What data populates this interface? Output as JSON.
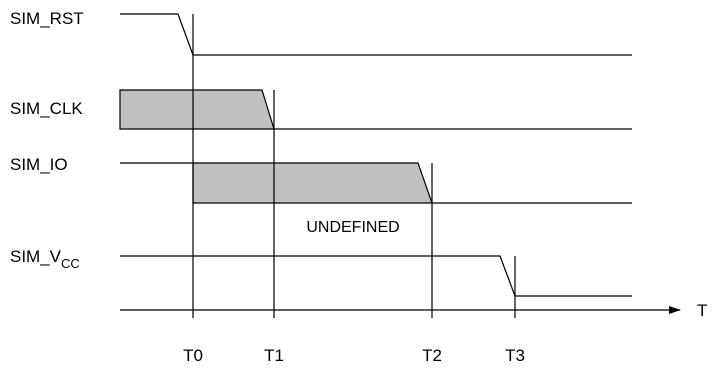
{
  "signals": {
    "rst": "SIM_RST",
    "clk": "SIM_CLK",
    "io": "SIM_IO",
    "vcc": {
      "base": "SIM_V",
      "sub": "CC"
    }
  },
  "annotation": "UNDEFINED",
  "axis": {
    "label": "T"
  },
  "timepoints": [
    "T0",
    "T1",
    "T2",
    "T3"
  ],
  "colors": {
    "shade": "#c0c0c0",
    "line": "#000000"
  }
}
